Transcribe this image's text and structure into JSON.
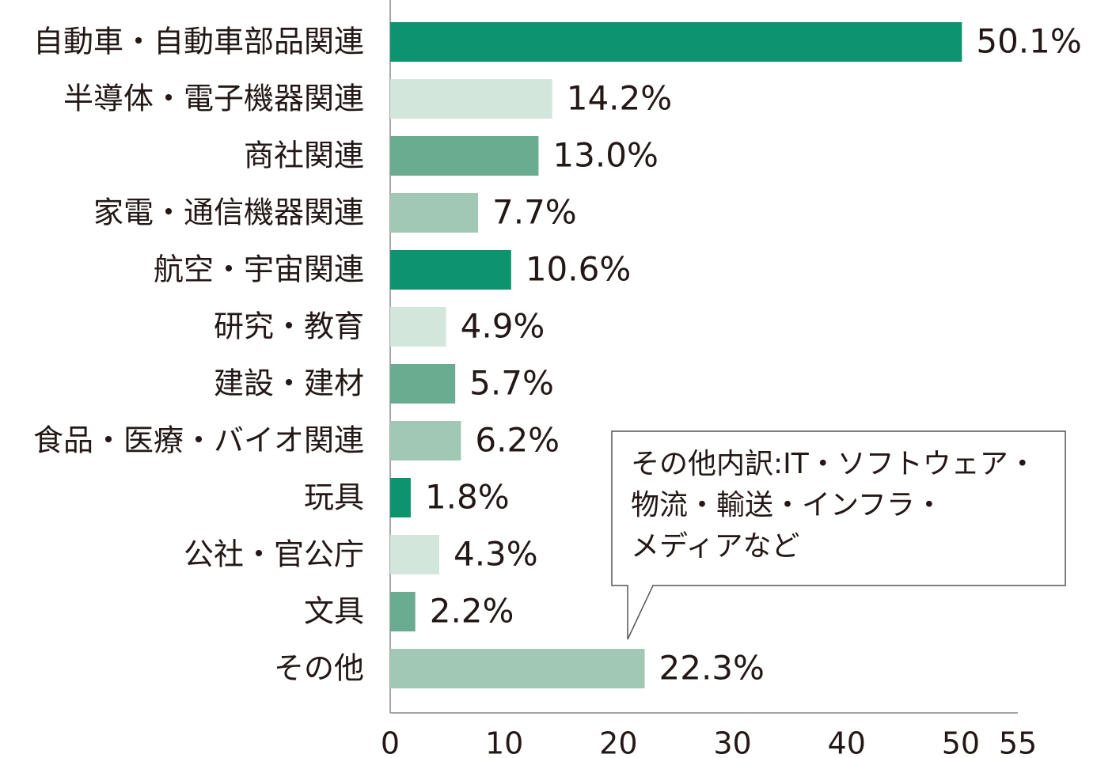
{
  "chart_data": {
    "type": "bar",
    "orientation": "horizontal",
    "categories": [
      "自動車・自動車部品関連",
      "半導体・電子機器関連",
      "商社関連",
      "家電・通信機器関連",
      "航空・宇宙関連",
      "研究・教育",
      "建設・建材",
      "食品・医療・バイオ関連",
      "玩具",
      "公社・官公庁",
      "文具",
      "その他"
    ],
    "values": [
      50.1,
      14.2,
      13.0,
      7.7,
      10.6,
      4.9,
      5.7,
      6.2,
      1.8,
      4.3,
      2.2,
      22.3
    ],
    "value_labels": [
      "50.1%",
      "14.2%",
      "13.0%",
      "7.7%",
      "10.6%",
      "4.9%",
      "5.7%",
      "6.2%",
      "1.8%",
      "4.3%",
      "2.2%",
      "22.3%"
    ],
    "colors": [
      "#0e936f",
      "#d3e6dc",
      "#6aac90",
      "#a0c8b5",
      "#0e936f",
      "#d3e6dc",
      "#6aac90",
      "#a0c8b5",
      "#0e936f",
      "#d3e6dc",
      "#6aac90",
      "#a0c8b5"
    ],
    "xlim": [
      0,
      55
    ],
    "xticks": [
      0,
      10,
      20,
      30,
      40,
      50,
      55
    ],
    "grid": false,
    "annotation": [
      "その他内訳:IT・ソフトウェア・",
      "物流・輸送・インフラ・",
      "メディアなど"
    ]
  }
}
